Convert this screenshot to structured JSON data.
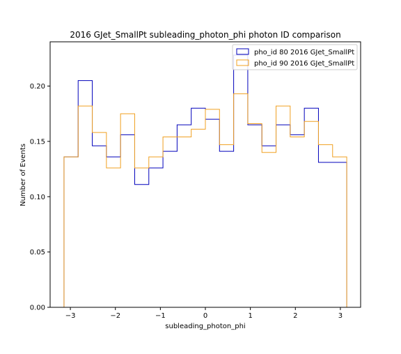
{
  "chart_data": {
    "type": "histogram",
    "title": "2016 GJet_SmallPt subleading_photon_phi photon ID comparison",
    "xlabel": "subleading_photon_phi",
    "ylabel": "Number of Events",
    "xlim": [
      -3.45,
      3.45
    ],
    "ylim": [
      0,
      0.24
    ],
    "xticks": [
      -3,
      -2,
      -1,
      0,
      1,
      2,
      3
    ],
    "xtick_labels": [
      "−3",
      "−2",
      "−1",
      "0",
      "1",
      "2",
      "3"
    ],
    "yticks": [
      0,
      0.05,
      0.1,
      0.15,
      0.2
    ],
    "ytick_labels": [
      "0.00",
      "0.05",
      "0.10",
      "0.15",
      "0.20"
    ],
    "bin_edges": [
      -3.1416,
      -2.8274,
      -2.5133,
      -2.1991,
      -1.885,
      -1.5708,
      -1.2566,
      -0.9425,
      -0.6283,
      -0.3142,
      0,
      0.3142,
      0.6283,
      0.9425,
      1.2566,
      1.5708,
      1.885,
      2.1991,
      2.5133,
      2.8274,
      3.1416
    ],
    "legend_position": "top-right",
    "grid": false,
    "series": [
      {
        "name": "pho_id 80 2016 GJet_SmallPt",
        "color": "#0000bb",
        "values": [
          0.136,
          0.205,
          0.146,
          0.136,
          0.156,
          0.111,
          0.126,
          0.141,
          0.165,
          0.18,
          0.17,
          0.141,
          0.228,
          0.165,
          0.146,
          0.165,
          0.156,
          0.18,
          0.131,
          0.131
        ]
      },
      {
        "name": "pho_id 90 2016 GJet_SmallPt",
        "color": "#f0a020",
        "values": [
          0.136,
          0.182,
          0.158,
          0.126,
          0.175,
          0.126,
          0.136,
          0.154,
          0.154,
          0.161,
          0.179,
          0.147,
          0.193,
          0.166,
          0.14,
          0.182,
          0.154,
          0.168,
          0.147,
          0.136
        ]
      }
    ]
  }
}
